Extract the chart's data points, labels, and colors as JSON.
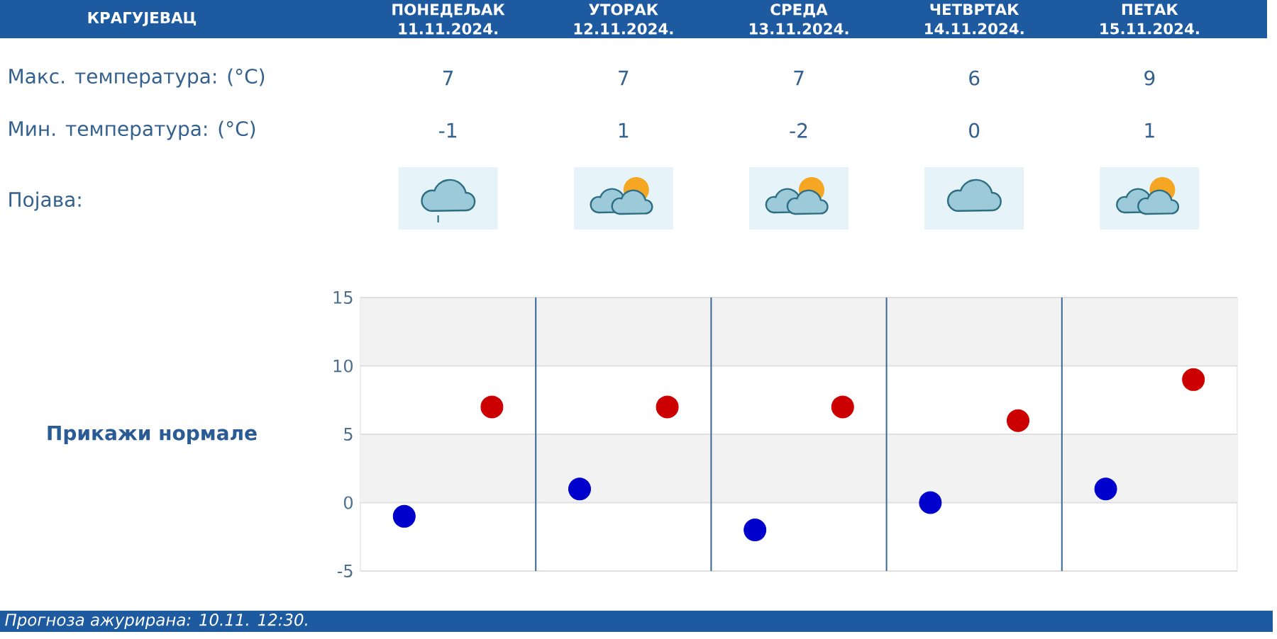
{
  "chart_data": {
    "type": "scatter",
    "title": "КРАГУЈЕВАЦ",
    "categories": [
      null,
      null,
      null,
      null,
      null
    ],
    "series": [
      {
        "color": "#cc0000",
        "values": [
          7,
          7,
          7,
          6,
          9
        ]
      },
      {
        "color": "#0000cc",
        "values": [
          -1,
          1,
          -2,
          0,
          1
        ]
      }
    ],
    "ylim": [
      -5,
      15
    ],
    "yticks": [
      -5,
      0,
      5,
      10,
      15
    ],
    "grid": true,
    "marker": "circle",
    "data_labels": true,
    "bands": [
      {
        "axis": "y",
        "from": 10,
        "to": 15,
        "color": "#f2f2f2"
      },
      {
        "axis": "y",
        "from": 0,
        "to": 5,
        "color": "#f2f2f2"
      }
    ],
    "annotations": [
      "ПОНЕДЕЉАК 11.11.2024.",
      "УТОРАК 12.11.2024.",
      "СРЕДА 13.11.2024.",
      "ЧЕТВРТАК 14.11.2024.",
      "ПЕТАК 15.11.2024.",
      "Макс. температура: (°C)",
      "Мин. температура: (°C)",
      "Појава:",
      "Прикажи нормале",
      "Прогноза ажурирана:  10.11. 12:30."
    ]
  }
}
